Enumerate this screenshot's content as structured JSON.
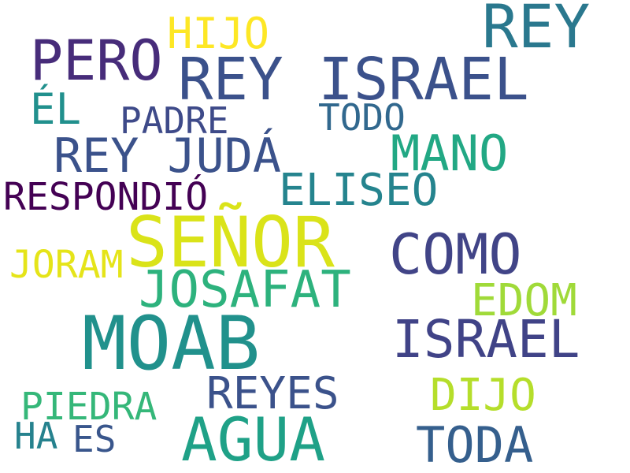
{
  "words": [
    {
      "text": "REY",
      "color": "#2a788e"
    },
    {
      "text": "HIJO",
      "color": "#fde725"
    },
    {
      "text": "PERO",
      "color": "#472c7a"
    },
    {
      "text": "REY ISRAEL",
      "color": "#3b518b"
    },
    {
      "text": "ÉL",
      "color": "#21908d"
    },
    {
      "text": "PADRE",
      "color": "#3e4a89"
    },
    {
      "text": "TODO",
      "color": "#31688e"
    },
    {
      "text": "REY JUDÁ",
      "color": "#3b528b"
    },
    {
      "text": "MANO",
      "color": "#22a884"
    },
    {
      "text": "RESPONDIÓ",
      "color": "#440154"
    },
    {
      "text": "ELISEO",
      "color": "#25848e"
    },
    {
      "text": "SEÑOR",
      "color": "#dae319"
    },
    {
      "text": "COMO",
      "color": "#414487"
    },
    {
      "text": "JORAM",
      "color": "#e5e419"
    },
    {
      "text": "JOSAFAT",
      "color": "#2db27d"
    },
    {
      "text": "EDOM",
      "color": "#a0da39"
    },
    {
      "text": "MOAB",
      "color": "#21918c"
    },
    {
      "text": "ISRAEL",
      "color": "#404387"
    },
    {
      "text": "REYES",
      "color": "#3b528b"
    },
    {
      "text": "DIJO",
      "color": "#b5de2b"
    },
    {
      "text": "PIEDRA",
      "color": "#35b779"
    },
    {
      "text": "HA",
      "color": "#26828e"
    },
    {
      "text": "ES",
      "color": "#39568c"
    },
    {
      "text": "AGUA",
      "color": "#1fa187"
    },
    {
      "text": "TODA",
      "color": "#355f8d"
    }
  ]
}
